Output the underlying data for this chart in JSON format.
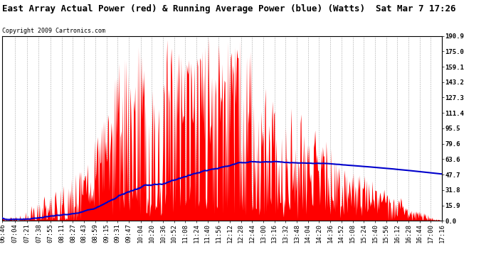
{
  "title": "East Array Actual Power (red) & Running Average Power (blue) (Watts)  Sat Mar 7 17:26",
  "copyright": "Copyright 2009 Cartronics.com",
  "ylabel_right": [
    "190.9",
    "175.0",
    "159.1",
    "143.2",
    "127.3",
    "111.4",
    "95.5",
    "79.6",
    "63.6",
    "47.7",
    "31.8",
    "15.9",
    "0.0"
  ],
  "ymax": 190.9,
  "ymin": 0.0,
  "background_color": "#ffffff",
  "plot_background": "#ffffff",
  "grid_color": "#aaaaaa",
  "actual_color": "#ff0000",
  "average_color": "#0000cc",
  "title_fontsize": 9,
  "tick_label_fontsize": 6.5,
  "copyright_fontsize": 6
}
